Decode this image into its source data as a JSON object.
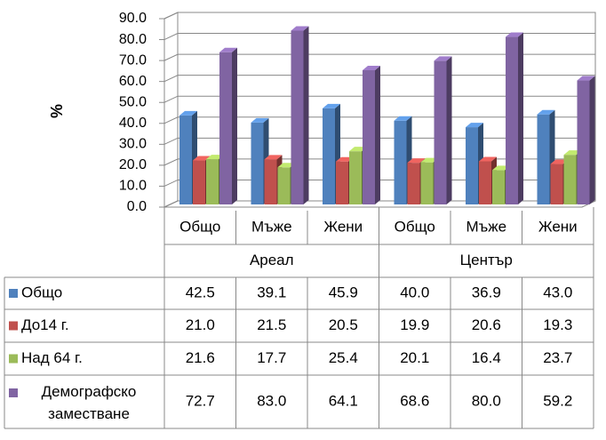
{
  "chart_data": {
    "type": "bar3d",
    "ylabel": "%",
    "categories": [
      "Общо",
      "Мъже",
      "Жени",
      "Общо",
      "Мъже",
      "Жени"
    ],
    "category_groups": [
      "Ареал",
      "Център"
    ],
    "ylim": [
      0,
      90
    ],
    "yticks": [
      {
        "value": 0,
        "label": "0.0"
      },
      {
        "value": 10,
        "label": "10.0"
      },
      {
        "value": 20,
        "label": "20.0"
      },
      {
        "value": 30,
        "label": "30.0"
      },
      {
        "value": 40,
        "label": "40.0"
      },
      {
        "value": 50,
        "label": "50.0"
      },
      {
        "value": 60,
        "label": "60.0"
      },
      {
        "value": 70,
        "label": "70.0"
      },
      {
        "value": 80,
        "label": "80.0"
      },
      {
        "value": 90,
        "label": "90.0"
      }
    ],
    "grid": true,
    "series": [
      {
        "name": "Общо",
        "color": "#4f81bd",
        "values": [
          42.5,
          39.1,
          45.9,
          40.0,
          36.9,
          43.0
        ],
        "value_labels": [
          "42.5",
          "39.1",
          "45.9",
          "40.0",
          "36.9",
          "43.0"
        ]
      },
      {
        "name": "До14 г.",
        "color": "#c0504d",
        "values": [
          21.0,
          21.5,
          20.5,
          19.9,
          20.6,
          19.3
        ],
        "value_labels": [
          "21.0",
          "21.5",
          "20.5",
          "19.9",
          "20.6",
          "19.3"
        ]
      },
      {
        "name": "Над 64 г.",
        "color": "#9bbb59",
        "values": [
          21.6,
          17.7,
          25.4,
          20.1,
          16.4,
          23.7
        ],
        "value_labels": [
          "21.6",
          "17.7",
          "25.4",
          "20.1",
          "16.4",
          "23.7"
        ]
      },
      {
        "name": "Демографско заместване",
        "color": "#8064a2",
        "values": [
          72.7,
          83.0,
          64.1,
          68.6,
          80.0,
          59.2
        ],
        "value_labels": [
          "72.7",
          "83.0",
          "64.1",
          "68.6",
          "80.0",
          "59.2"
        ]
      }
    ]
  }
}
